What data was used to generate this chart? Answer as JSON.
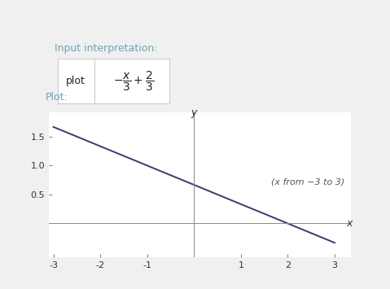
{
  "title_interp": "Input interpretation:",
  "title_plot": "Plot:",
  "formula_left": "plot",
  "formula_math": "$-\\dfrac{x}{3} + \\dfrac{2}{3}$",
  "x_min": -3,
  "x_max": 3,
  "slope": -0.3333333333,
  "intercept": 0.6666666667,
  "line_color": "#3a3a6e",
  "bg_color": "#f0f0f0",
  "plot_bg": "#ffffff",
  "header_bg": "#f0f0f0",
  "interp_text_color": "#6fa3b5",
  "annotation": "(x from −3 to 3)",
  "annotation_color": "#555555",
  "x_ticks": [
    -3,
    -2,
    -1,
    1,
    2,
    3
  ],
  "y_ticks": [
    0.5,
    1.0,
    1.5
  ],
  "xlabel": "x",
  "ylabel": "y"
}
